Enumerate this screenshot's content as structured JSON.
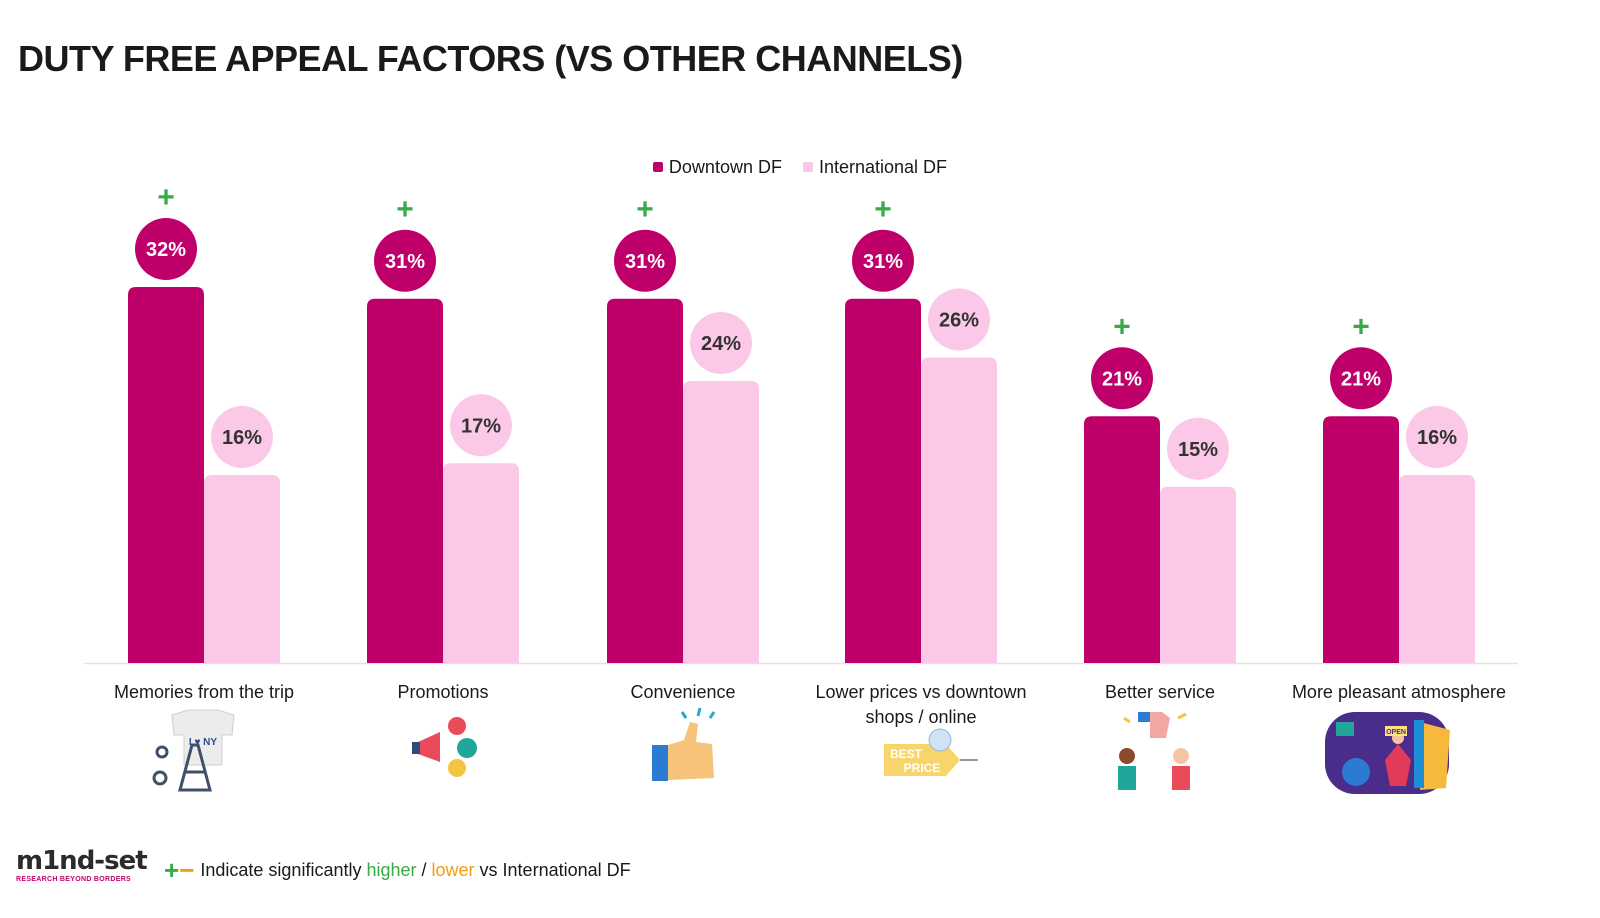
{
  "title": "DUTY FREE APPEAL FACTORS (VS OTHER CHANNELS)",
  "legend": [
    {
      "name": "Downtown DF",
      "color": "#c0006a"
    },
    {
      "name": "International DF",
      "color": "#fcc8e7"
    }
  ],
  "chart_data": {
    "type": "bar",
    "categories": [
      "Memories from the trip",
      "Promotions",
      "Convenience",
      "Lower prices vs downtown shops / online",
      "Better service",
      "More pleasant atmosphere"
    ],
    "series": [
      {
        "name": "Downtown DF",
        "values": [
          32,
          31,
          31,
          31,
          21,
          21
        ],
        "labels": [
          "32%",
          "31%",
          "31%",
          "31%",
          "21%",
          "21%"
        ],
        "color": "#c0006a"
      },
      {
        "name": "International DF",
        "values": [
          16,
          17,
          24,
          26,
          15,
          16
        ],
        "labels": [
          "16%",
          "17%",
          "24%",
          "26%",
          "15%",
          "16%"
        ],
        "color": "#fcc8e7"
      }
    ],
    "significance": [
      "+",
      "+",
      "+",
      "+",
      "+",
      "+"
    ],
    "ylim": [
      0,
      32
    ],
    "legend_position": "top-center",
    "grid": false
  },
  "category_icons": [
    "souvenir-icon",
    "megaphone-icon",
    "thumbs-up-icon",
    "best-price-tag-icon",
    "service-icon",
    "shop-atmosphere-icon"
  ],
  "icon_text": {
    "i_ny": "I ♥ NY",
    "best": "BEST",
    "price": "PRICE",
    "open": "OPEN"
  },
  "footer": {
    "logo_text": "m1nd-set",
    "logo_sub": "RESEARCH BEYOND BORDERS",
    "plus": "+",
    "minus": "−",
    "note_prefix": "Indicate significantly ",
    "higher": "higher",
    "separator": " / ",
    "lower": "lower",
    "note_suffix": " vs International DF"
  },
  "colors": {
    "higher": "#3aa94a",
    "lower": "#f39c12",
    "downtown": "#c0006a",
    "international": "#fcc8e7"
  }
}
